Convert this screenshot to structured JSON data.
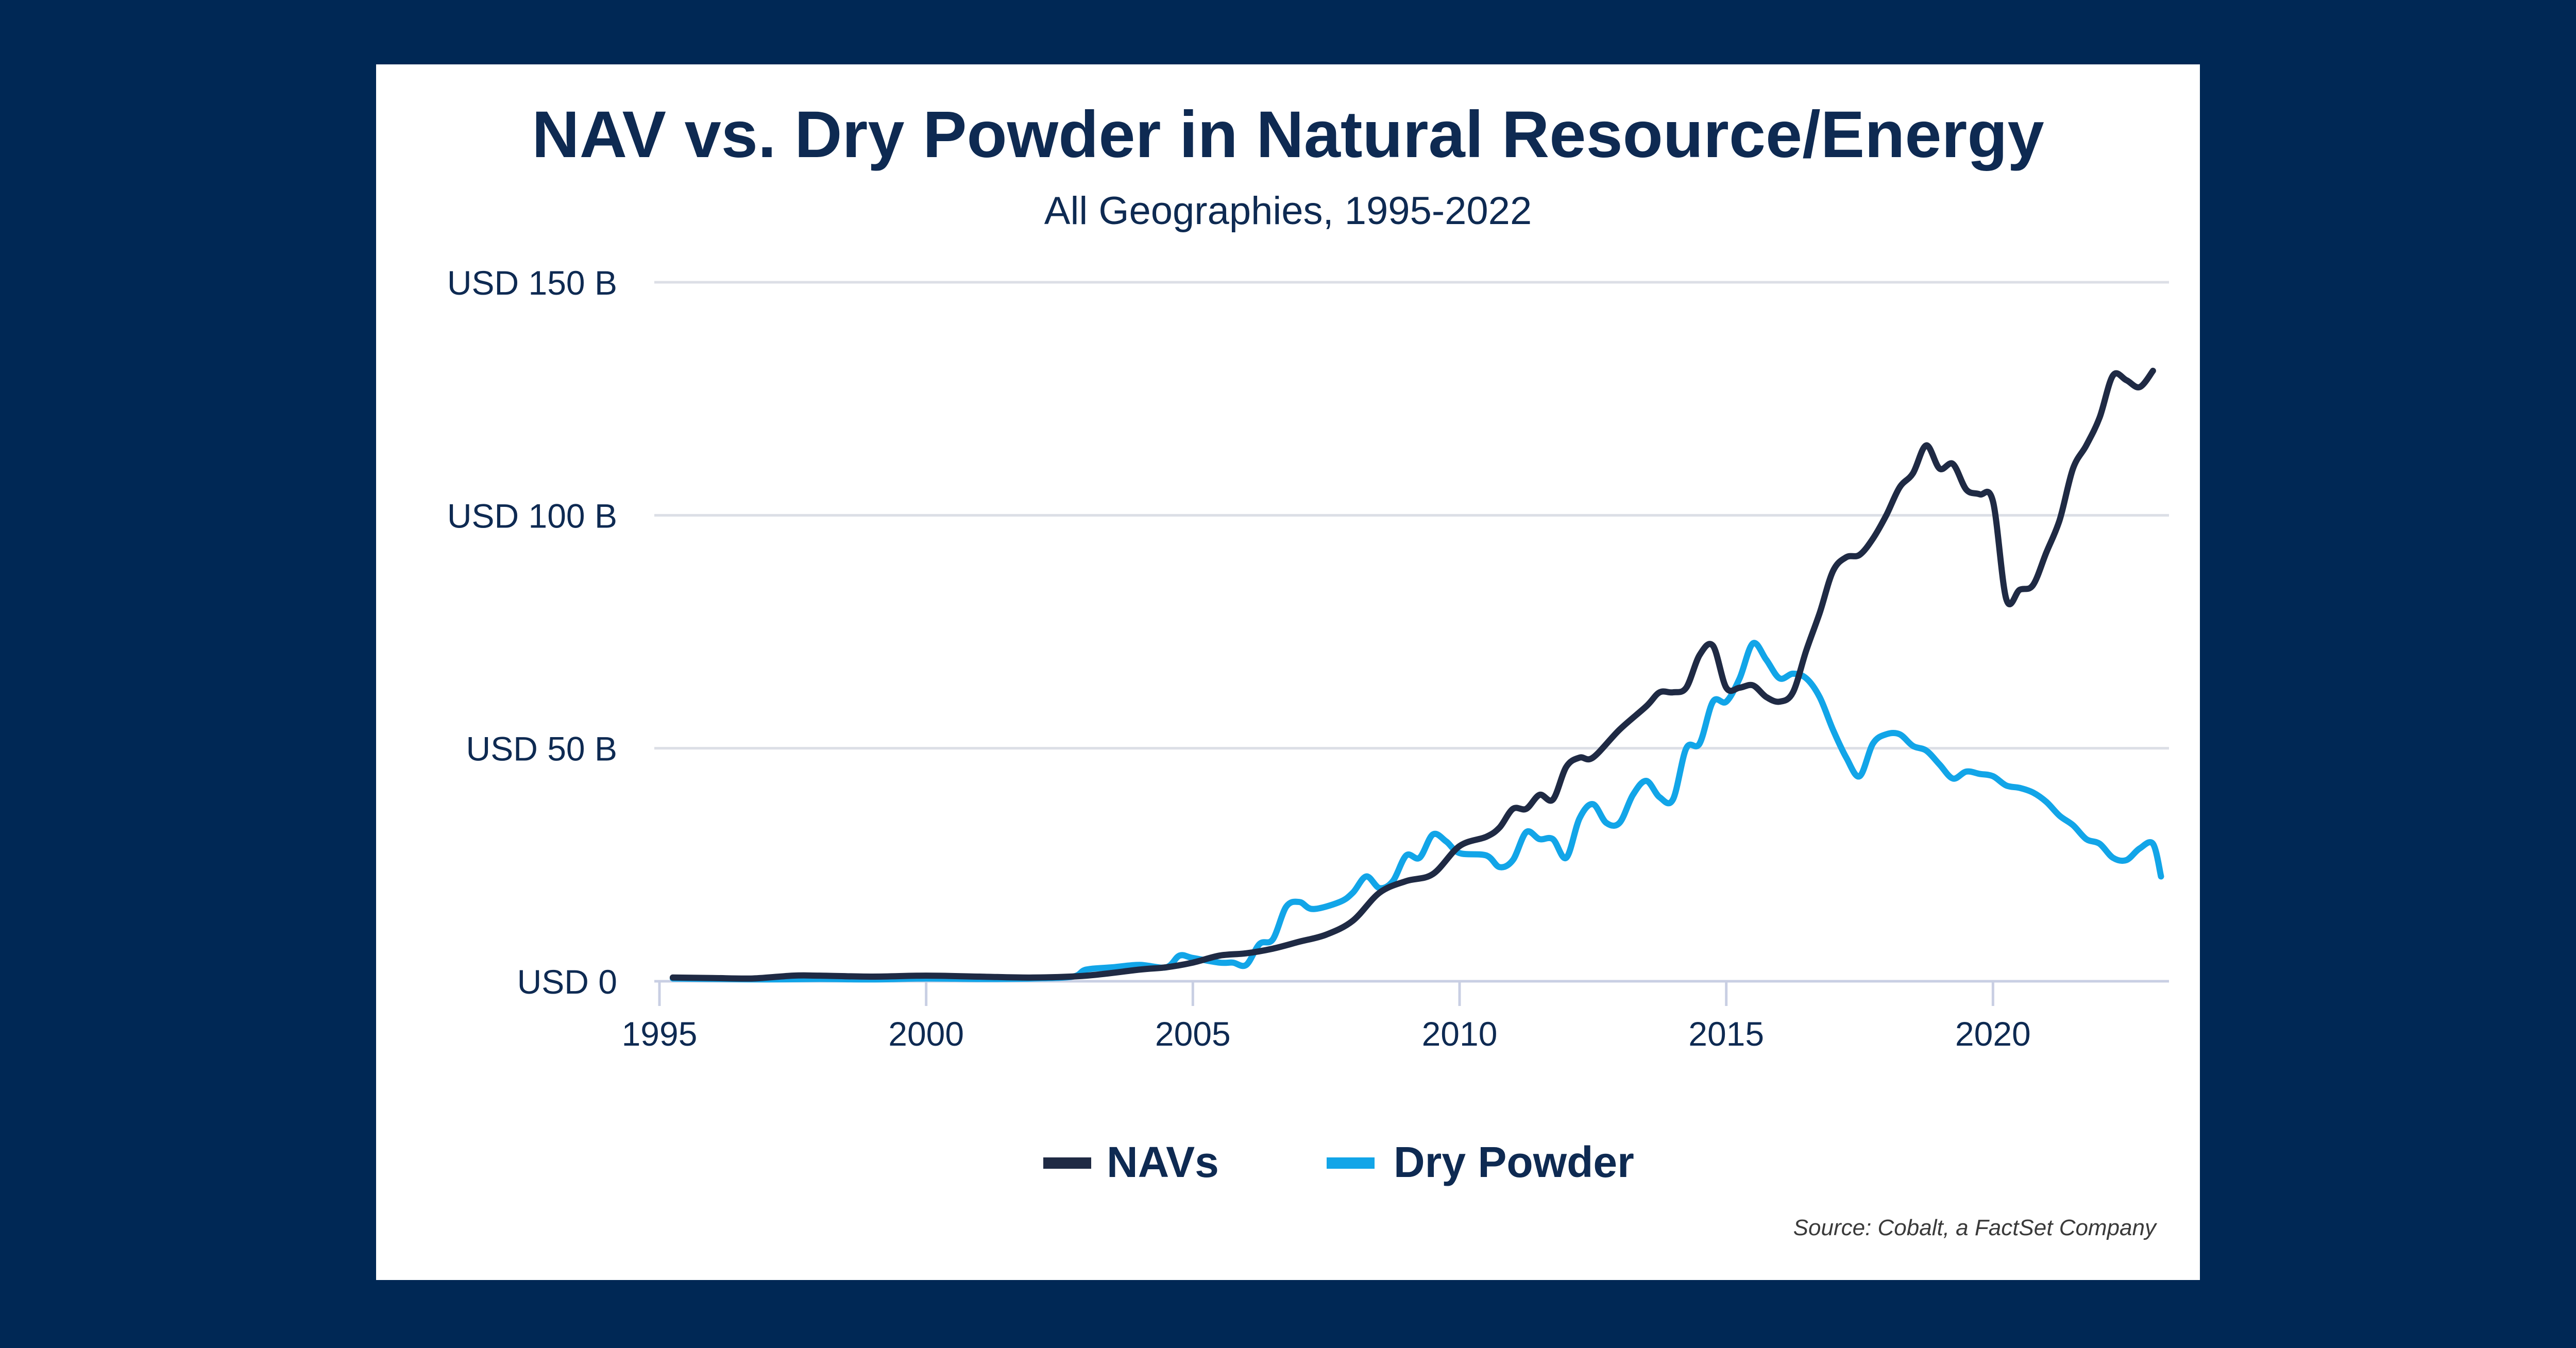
{
  "background_color": "#002855",
  "card_color": "#ffffff",
  "chart_data": {
    "type": "line",
    "title": "NAV vs. Dry Powder in Natural Resource/Energy",
    "subtitle": "All Geographies, 1995-2022",
    "xlabel": "",
    "ylabel": "",
    "xlim": [
      1995,
      2023.3
    ],
    "ylim": [
      0,
      150
    ],
    "x_ticks": [
      1995,
      2000,
      2005,
      2010,
      2015,
      2020
    ],
    "x_tick_labels": [
      "1995",
      "2000",
      "2005",
      "2010",
      "2015",
      "2020"
    ],
    "y_ticks": [
      0,
      50,
      100,
      150
    ],
    "y_tick_labels": [
      "USD 0",
      "USD 50 B",
      "USD 100 B",
      "USD 150 B"
    ],
    "grid": "horizontal",
    "legend_position": "bottom-center",
    "series": [
      {
        "name": "NAVs",
        "color": "#1f2a44",
        "points": [
          [
            1995.25,
            0.8
          ],
          [
            1996,
            0.7
          ],
          [
            1996.75,
            0.6
          ],
          [
            1997.5,
            1.2
          ],
          [
            1998,
            1.2
          ],
          [
            1999,
            1.0
          ],
          [
            2000,
            1.2
          ],
          [
            2001,
            1.0
          ],
          [
            2002,
            0.8
          ],
          [
            2003,
            1.2
          ],
          [
            2004,
            2.5
          ],
          [
            2004.5,
            3.0
          ],
          [
            2005,
            4.0
          ],
          [
            2005.5,
            5.5
          ],
          [
            2006,
            6.0
          ],
          [
            2006.5,
            7.0
          ],
          [
            2007,
            8.5
          ],
          [
            2007.5,
            10.0
          ],
          [
            2008,
            13.0
          ],
          [
            2008.5,
            19.0
          ],
          [
            2009,
            21.5
          ],
          [
            2009.5,
            23.0
          ],
          [
            2010,
            29.0
          ],
          [
            2010.5,
            31.0
          ],
          [
            2010.75,
            33.0
          ],
          [
            2011,
            37.0
          ],
          [
            2011.25,
            37.0
          ],
          [
            2011.5,
            40.0
          ],
          [
            2011.75,
            39.0
          ],
          [
            2012,
            46.0
          ],
          [
            2012.25,
            48.0
          ],
          [
            2012.5,
            48.0
          ],
          [
            2013,
            54.0
          ],
          [
            2013.5,
            59.0
          ],
          [
            2013.75,
            62.0
          ],
          [
            2014,
            62.0
          ],
          [
            2014.25,
            63.0
          ],
          [
            2014.5,
            70.0
          ],
          [
            2014.75,
            72.0
          ],
          [
            2015,
            63.0
          ],
          [
            2015.25,
            63.0
          ],
          [
            2015.5,
            63.5
          ],
          [
            2015.75,
            61.0
          ],
          [
            2016,
            60.0
          ],
          [
            2016.25,
            62.0
          ],
          [
            2016.5,
            71.0
          ],
          [
            2016.75,
            79.0
          ],
          [
            2017,
            88.0
          ],
          [
            2017.25,
            91.0
          ],
          [
            2017.5,
            91.5
          ],
          [
            2017.75,
            95.0
          ],
          [
            2018,
            100.0
          ],
          [
            2018.25,
            106.0
          ],
          [
            2018.5,
            109.0
          ],
          [
            2018.75,
            115.0
          ],
          [
            2019,
            110.0
          ],
          [
            2019.25,
            111.0
          ],
          [
            2019.5,
            105.5
          ],
          [
            2019.75,
            104.5
          ],
          [
            2020,
            103.0
          ],
          [
            2020.25,
            82.0
          ],
          [
            2020.5,
            84.0
          ],
          [
            2020.75,
            85.0
          ],
          [
            2021,
            92.0
          ],
          [
            2021.25,
            99.0
          ],
          [
            2021.5,
            110.0
          ],
          [
            2021.75,
            115.0
          ],
          [
            2022,
            121.0
          ],
          [
            2022.25,
            130.0
          ],
          [
            2022.5,
            129.0
          ],
          [
            2022.75,
            127.5
          ],
          [
            2023,
            131.0
          ]
        ]
      },
      {
        "name": "Dry Powder",
        "color": "#12a5e8",
        "points": [
          [
            1995.25,
            0.6
          ],
          [
            1996,
            0.5
          ],
          [
            1997,
            0.4
          ],
          [
            1998,
            0.5
          ],
          [
            1999,
            0.4
          ],
          [
            2000,
            0.6
          ],
          [
            2001,
            0.5
          ],
          [
            2002,
            0.6
          ],
          [
            2002.75,
            1.0
          ],
          [
            2003,
            2.5
          ],
          [
            2003.5,
            3.0
          ],
          [
            2004,
            3.5
          ],
          [
            2004.5,
            3.0
          ],
          [
            2004.75,
            5.5
          ],
          [
            2005,
            5.0
          ],
          [
            2005.5,
            4.0
          ],
          [
            2005.75,
            4.0
          ],
          [
            2006,
            3.5
          ],
          [
            2006.25,
            8.0
          ],
          [
            2006.5,
            9.0
          ],
          [
            2006.75,
            16.0
          ],
          [
            2007,
            17.0
          ],
          [
            2007.25,
            15.5
          ],
          [
            2007.75,
            17.0
          ],
          [
            2008,
            19.0
          ],
          [
            2008.25,
            22.5
          ],
          [
            2008.5,
            20.0
          ],
          [
            2008.75,
            21.5
          ],
          [
            2009,
            27.0
          ],
          [
            2009.25,
            26.5
          ],
          [
            2009.5,
            31.5
          ],
          [
            2009.75,
            30.0
          ],
          [
            2010,
            27.5
          ],
          [
            2010.5,
            27.0
          ],
          [
            2010.75,
            24.5
          ],
          [
            2011,
            26.0
          ],
          [
            2011.25,
            32.0
          ],
          [
            2011.5,
            30.5
          ],
          [
            2011.75,
            30.5
          ],
          [
            2012,
            26.5
          ],
          [
            2012.25,
            35.0
          ],
          [
            2012.5,
            38.0
          ],
          [
            2012.75,
            34.0
          ],
          [
            2013,
            34.0
          ],
          [
            2013.25,
            40.0
          ],
          [
            2013.5,
            43.0
          ],
          [
            2013.75,
            39.5
          ],
          [
            2014,
            39.0
          ],
          [
            2014.25,
            50.0
          ],
          [
            2014.5,
            51.0
          ],
          [
            2014.75,
            60.0
          ],
          [
            2015,
            60.0
          ],
          [
            2015.25,
            65.0
          ],
          [
            2015.5,
            72.5
          ],
          [
            2015.75,
            69.0
          ],
          [
            2016,
            65.0
          ],
          [
            2016.25,
            66.0
          ],
          [
            2016.5,
            65.0
          ],
          [
            2016.75,
            61.0
          ],
          [
            2017,
            54.0
          ],
          [
            2017.25,
            48.0
          ],
          [
            2017.5,
            44.0
          ],
          [
            2017.75,
            51.0
          ],
          [
            2018,
            53.0
          ],
          [
            2018.25,
            53.0
          ],
          [
            2018.5,
            50.5
          ],
          [
            2018.75,
            49.5
          ],
          [
            2019,
            46.5
          ],
          [
            2019.25,
            43.5
          ],
          [
            2019.5,
            45.0
          ],
          [
            2019.75,
            44.5
          ],
          [
            2020,
            44.0
          ],
          [
            2020.25,
            42.0
          ],
          [
            2020.5,
            41.5
          ],
          [
            2020.75,
            40.5
          ],
          [
            2021,
            38.5
          ],
          [
            2021.25,
            35.5
          ],
          [
            2021.5,
            33.5
          ],
          [
            2021.75,
            30.5
          ],
          [
            2022,
            29.5
          ],
          [
            2022.25,
            26.5
          ],
          [
            2022.5,
            26.0
          ],
          [
            2022.75,
            28.5
          ],
          [
            2023,
            29.5
          ],
          [
            2023.15,
            22.5
          ]
        ]
      }
    ],
    "source": "Source: Cobalt, a FactSet Company"
  }
}
